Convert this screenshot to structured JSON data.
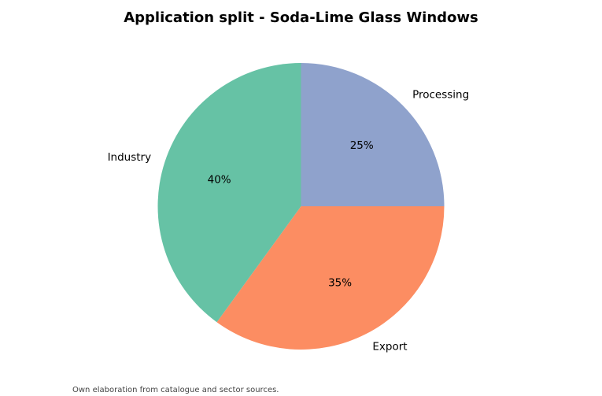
{
  "chart_data": {
    "type": "pie",
    "title": "Application split - Soda-Lime Glass Windows",
    "slices": [
      {
        "label": "Processing",
        "value": 25,
        "pct_label": "25%",
        "color": "#8fa2cc"
      },
      {
        "label": "Export",
        "value": 35,
        "pct_label": "35%",
        "color": "#fc8d62"
      },
      {
        "label": "Industry",
        "value": 40,
        "pct_label": "40%",
        "color": "#66c2a5"
      }
    ],
    "start_angle_deg": 90,
    "direction": "clockwise",
    "legend": "none"
  },
  "footer": {
    "source": "Own elaboration from catalogue and sector sources."
  }
}
